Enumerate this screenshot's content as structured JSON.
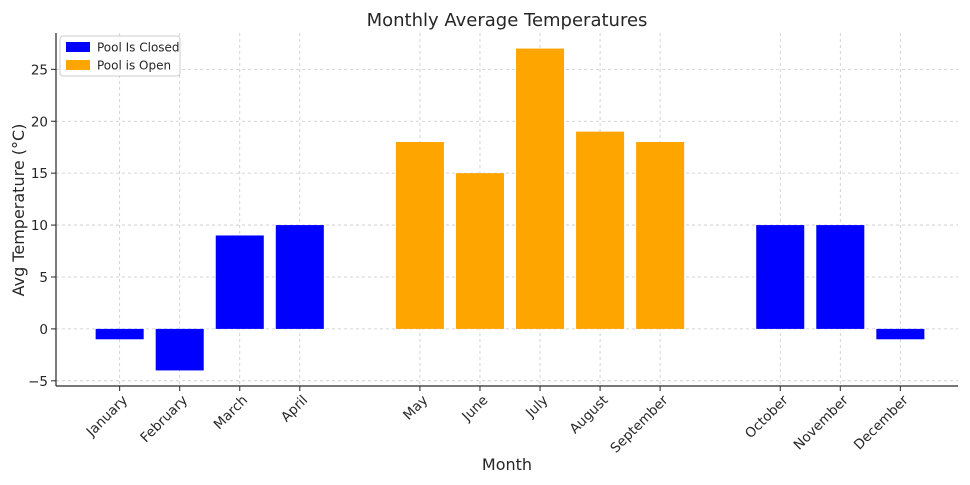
{
  "chart_data": {
    "type": "bar",
    "title": "Monthly Average Temperatures",
    "xlabel": "Month",
    "ylabel": "Avg Temperature (°C)",
    "ylim": [
      -5.5,
      28.5
    ],
    "yticks": [
      -5,
      0,
      5,
      10,
      15,
      20,
      25
    ],
    "ytick_labels": [
      "−5",
      "0",
      "5",
      "10",
      "15",
      "20",
      "25"
    ],
    "grid": true,
    "legend_placement": "top-left",
    "categories": [
      "January",
      "February",
      "March",
      "April",
      "May",
      "June",
      "July",
      "August",
      "September",
      "October",
      "November",
      "December"
    ],
    "x_positions": [
      0,
      1,
      2,
      3,
      5,
      6,
      7,
      8,
      9,
      11,
      12,
      13
    ],
    "values": [
      -1,
      -4,
      9,
      10,
      18,
      15,
      27,
      19,
      18,
      10,
      10,
      -1
    ],
    "status": [
      "closed",
      "closed",
      "closed",
      "closed",
      "open",
      "open",
      "open",
      "open",
      "open",
      "closed",
      "closed",
      "closed"
    ],
    "series": [
      {
        "key": "closed",
        "name": "Pool Is Closed",
        "color": "#0000ff"
      },
      {
        "key": "open",
        "name": "Pool is Open",
        "color": "#ffa500"
      }
    ]
  }
}
